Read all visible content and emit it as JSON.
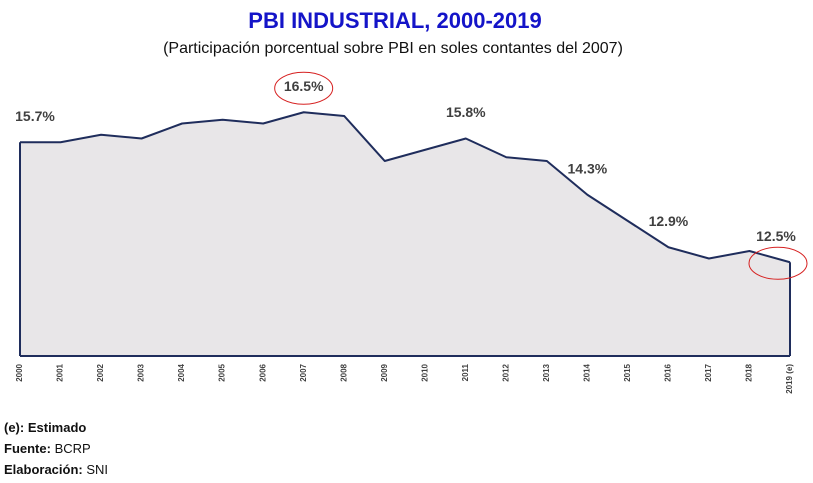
{
  "chart_data": {
    "type": "area",
    "title": "PBI INDUSTRIAL, 2000-2019",
    "subtitle": "(Participación porcentual sobre PBI en soles contantes del 2007)",
    "categories": [
      "2000",
      "2001",
      "2002",
      "2003",
      "2004",
      "2005",
      "2006",
      "2007",
      "2008",
      "2009",
      "2010",
      "2011",
      "2012",
      "2013",
      "2014",
      "2015",
      "2016",
      "2017",
      "2018",
      "2019 (e)"
    ],
    "values": [
      15.7,
      15.7,
      15.9,
      15.8,
      16.2,
      16.3,
      16.2,
      16.5,
      16.4,
      15.2,
      15.5,
      15.8,
      15.3,
      15.2,
      14.3,
      13.6,
      12.9,
      12.6,
      12.8,
      12.5
    ],
    "value_labels": [
      "15.7%",
      null,
      null,
      null,
      null,
      null,
      null,
      "16.5%",
      null,
      null,
      null,
      "15.8%",
      null,
      null,
      "14.3%",
      null,
      "12.9%",
      null,
      null,
      "12.5%"
    ],
    "highlight": [
      7,
      19
    ],
    "color": "#1f2d5c",
    "fill": "#e8e6e8",
    "ylim": [
      10,
      17.2
    ],
    "notes": [
      {
        "label": "(e):",
        "text": "Estimado"
      },
      {
        "label": "Fuente:",
        "text": "BCRP"
      },
      {
        "label": "Elaboración:",
        "text": "SNI"
      }
    ]
  }
}
